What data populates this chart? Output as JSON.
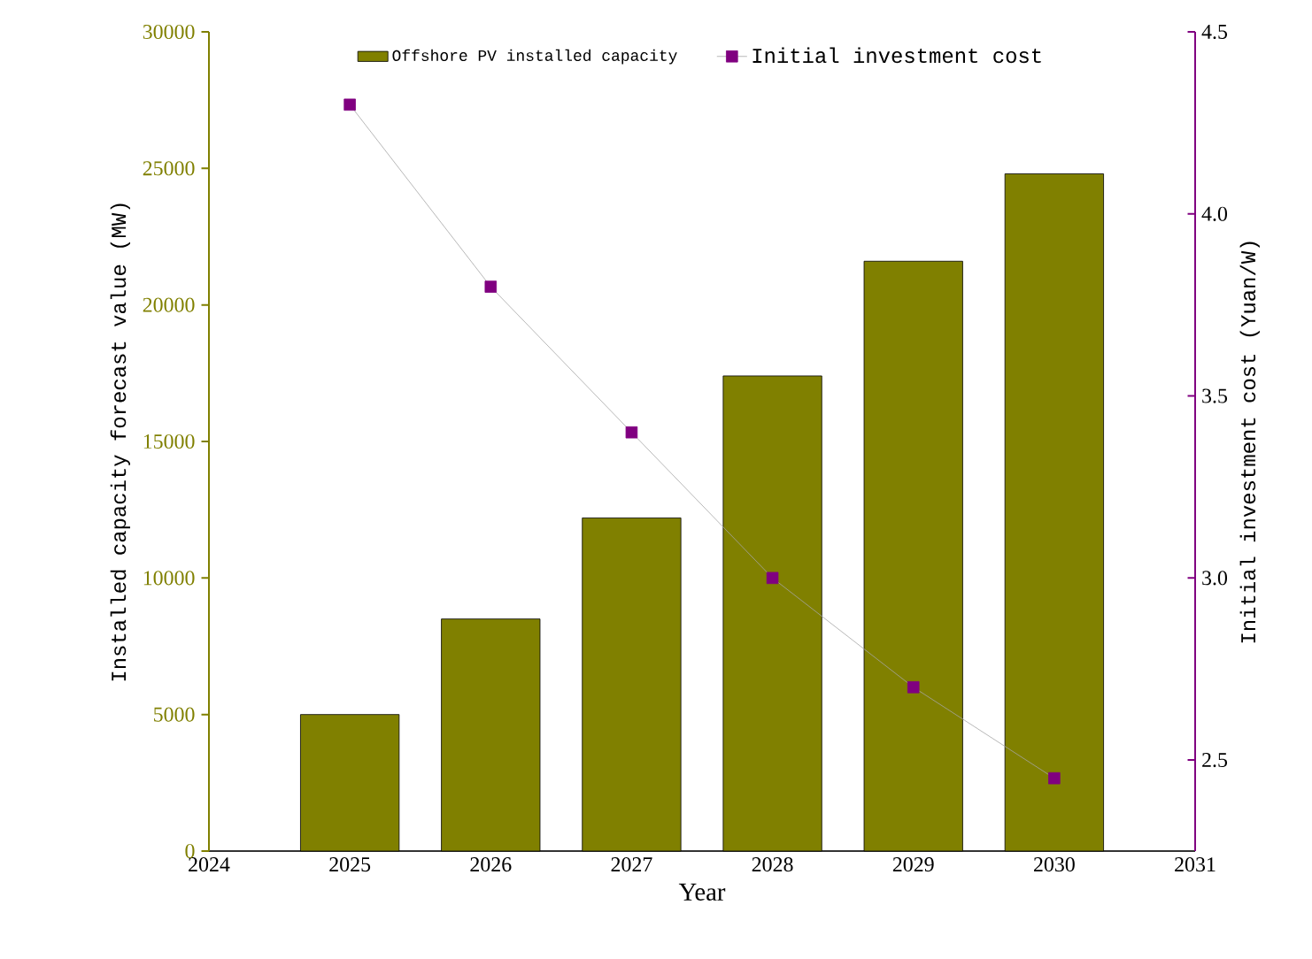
{
  "chart_data": {
    "type": "bar",
    "xlabel": "Year",
    "ylabel": "Installed capacity forecast value (MW)",
    "y2label": "Initial investment cost (Yuan/W)",
    "x": [
      2025,
      2026,
      2027,
      2028,
      2029,
      2030
    ],
    "xlim": [
      2024,
      2031
    ],
    "xticks": [
      2024,
      2025,
      2026,
      2027,
      2028,
      2029,
      2030,
      2031
    ],
    "ylim": [
      0,
      30000
    ],
    "yticks": [
      0,
      5000,
      10000,
      15000,
      20000,
      25000,
      30000
    ],
    "y2lim": [
      2.25,
      4.5
    ],
    "y2ticks": [
      2.5,
      {
        "value": 3,
        "label": "3.0"
      },
      3.5,
      {
        "value": 4,
        "label": "4.0"
      },
      4.5
    ],
    "legend": "top",
    "marker": "square",
    "series": [
      {
        "name": "Offshore PV installed capacity",
        "color": "#808000",
        "values": [
          5000,
          8500,
          12200,
          17400,
          21600,
          24800
        ]
      },
      {
        "name": "Initial investment cost",
        "type": "line",
        "axis": "y2",
        "color": "#800080",
        "values": [
          4.3,
          3.8,
          3.4,
          3.0,
          2.7,
          2.45
        ]
      }
    ]
  }
}
